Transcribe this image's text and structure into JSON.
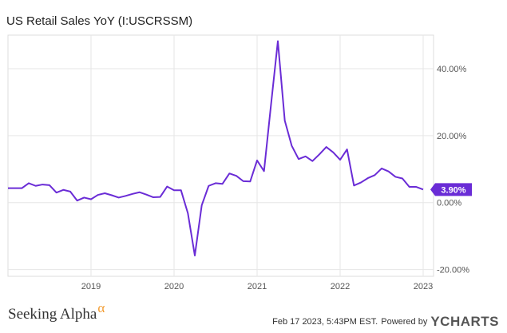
{
  "title": "US Retail Sales YoY (I:USCRSSM)",
  "chart_data": {
    "type": "line",
    "title": "US Retail Sales YoY (I:USCRSSM)",
    "x_tick_labels": [
      "2019",
      "2020",
      "2021",
      "2022",
      "2023"
    ],
    "y_tick_labels": [
      "40.00%",
      "20.00%",
      "0.00%",
      "-20.00%"
    ],
    "y_ticks": [
      40,
      20,
      0,
      -20
    ],
    "ylim": [
      -22,
      50
    ],
    "xlim": [
      "2018-01",
      "2023-02"
    ],
    "grid": true,
    "last_value_label": "3.90%",
    "series": [
      {
        "color": "#6a2cd6",
        "x": [
          "2018-01",
          "2018-02",
          "2018-03",
          "2018-04",
          "2018-05",
          "2018-06",
          "2018-07",
          "2018-08",
          "2018-09",
          "2018-10",
          "2018-11",
          "2018-12",
          "2019-01",
          "2019-02",
          "2019-03",
          "2019-04",
          "2019-05",
          "2019-06",
          "2019-07",
          "2019-08",
          "2019-09",
          "2019-10",
          "2019-11",
          "2019-12",
          "2020-01",
          "2020-02",
          "2020-03",
          "2020-04",
          "2020-05",
          "2020-06",
          "2020-07",
          "2020-08",
          "2020-09",
          "2020-10",
          "2020-11",
          "2020-12",
          "2021-01",
          "2021-02",
          "2021-03",
          "2021-04",
          "2021-05",
          "2021-06",
          "2021-07",
          "2021-08",
          "2021-09",
          "2021-10",
          "2021-11",
          "2021-12",
          "2022-01",
          "2022-02",
          "2022-03",
          "2022-04",
          "2022-05",
          "2022-06",
          "2022-07",
          "2022-08",
          "2022-09",
          "2022-10",
          "2022-11",
          "2022-12",
          "2023-01"
        ],
        "values": [
          4.3,
          4.3,
          4.3,
          5.8,
          5.0,
          5.4,
          5.2,
          3.0,
          3.8,
          3.3,
          0.6,
          1.5,
          1.0,
          2.3,
          2.8,
          2.2,
          1.5,
          2.0,
          2.6,
          3.1,
          2.4,
          1.6,
          1.7,
          4.8,
          3.7,
          3.7,
          -3.2,
          -15.8,
          -0.8,
          5.0,
          5.8,
          5.6,
          8.7,
          8.0,
          6.4,
          6.3,
          12.6,
          9.4,
          29.0,
          48.2,
          24.5,
          17.0,
          13.0,
          13.8,
          12.4,
          14.4,
          16.6,
          15.0,
          12.8,
          15.9,
          5.1,
          6.0,
          7.3,
          8.2,
          10.2,
          9.3,
          7.7,
          7.2,
          4.7,
          4.7,
          3.9
        ]
      }
    ]
  },
  "footer": {
    "brand": "Seeking Alpha",
    "brand_symbol": "α",
    "timestamp": "Feb 17 2023, 5:43PM EST.",
    "powered_by": "Powered by",
    "ycharts_logo": "YCHARTS"
  }
}
